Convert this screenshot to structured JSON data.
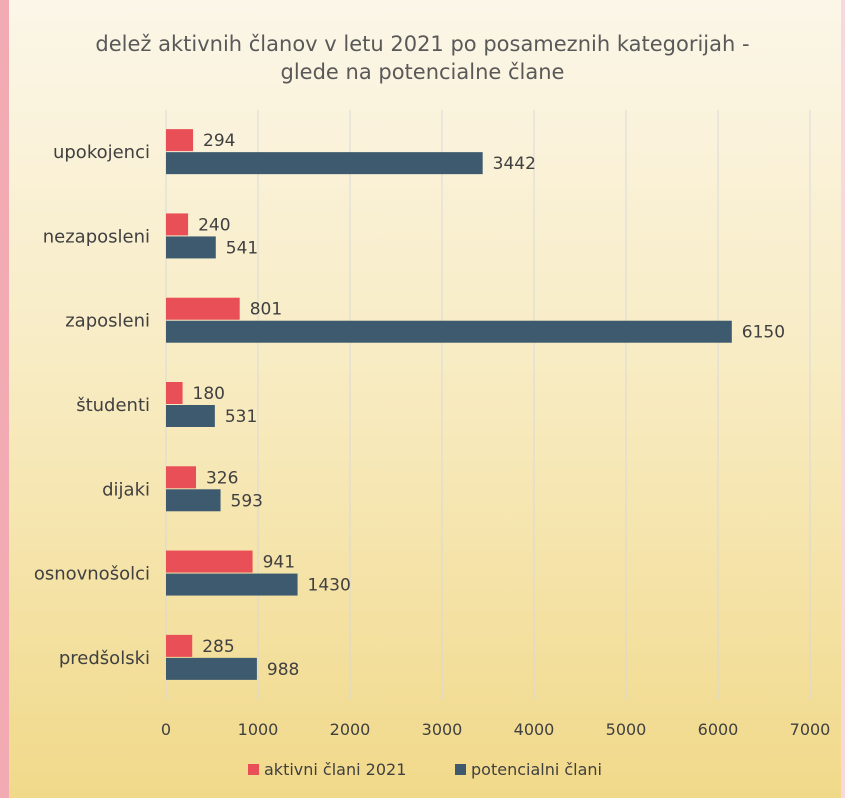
{
  "chart_data": {
    "type": "bar",
    "orientation": "horizontal",
    "title_lines": [
      "delež aktivnih članov v letu 2021 po posameznih kategorijah -",
      "glede na potencialne člane"
    ],
    "categories": [
      "upokojenci",
      "nezaposleni",
      "zaposleni",
      "študenti",
      "dijaki",
      "osnovnošolci",
      "predšolski"
    ],
    "series": [
      {
        "name": "aktivni člani 2021",
        "color": "#e84f57",
        "values": [
          294,
          240,
          801,
          180,
          326,
          941,
          285
        ]
      },
      {
        "name": "potencialni člani",
        "color": "#3d5a6e",
        "values": [
          3442,
          541,
          6150,
          531,
          593,
          1430,
          988
        ]
      }
    ],
    "xlim": [
      0,
      7000
    ],
    "xticks": [
      0,
      1000,
      2000,
      3000,
      4000,
      5000,
      6000,
      7000
    ],
    "xlabel": "",
    "ylabel": "",
    "grid": true,
    "legend_position": "bottom",
    "data_labels": true,
    "gridline_color": "#d9d9d9"
  }
}
